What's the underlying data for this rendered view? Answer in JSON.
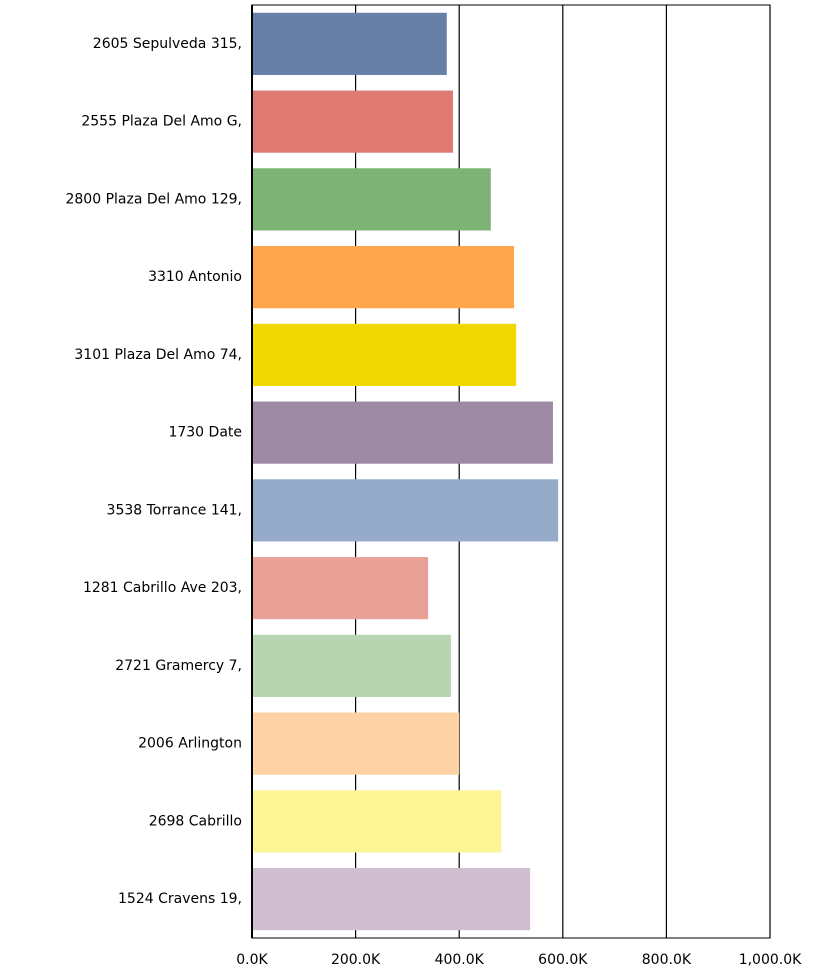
{
  "chart_data": {
    "type": "bar",
    "orientation": "horizontal",
    "categories": [
      "2605 Sepulveda 315,",
      "2555 Plaza Del Amo G,",
      "2800 Plaza Del Amo 129,",
      "3310 Antonio",
      "3101 Plaza Del Amo 74,",
      "1730 Date",
      "3538 Torrance 141,",
      "1281 Cabrillo Ave 203,",
      "2721 Gramercy 7,",
      "2006 Arlington",
      "2698 Cabrillo",
      "1524 Cravens 19,"
    ],
    "values": [
      376000,
      388000,
      461000,
      506000,
      510000,
      581000,
      591000,
      340000,
      384000,
      400000,
      481000,
      537000
    ],
    "colors": [
      "#6680a8",
      "#e07b74",
      "#7db374",
      "#ffa64d",
      "#f0d800",
      "#9e8aa5",
      "#95abc9",
      "#e8a097",
      "#b8d4b0",
      "#fdd3a6",
      "#fdf595",
      "#cfbfd0"
    ],
    "xlim": [
      0,
      1000000
    ],
    "xticks": [
      {
        "value": 0,
        "label": "0.0K"
      },
      {
        "value": 200000,
        "label": "200.0K"
      },
      {
        "value": 400000,
        "label": "400.0K"
      },
      {
        "value": 600000,
        "label": "600.0K"
      },
      {
        "value": 800000,
        "label": "800.0K"
      },
      {
        "value": 1000000,
        "label": "1,000.0K"
      }
    ],
    "grid": true
  }
}
